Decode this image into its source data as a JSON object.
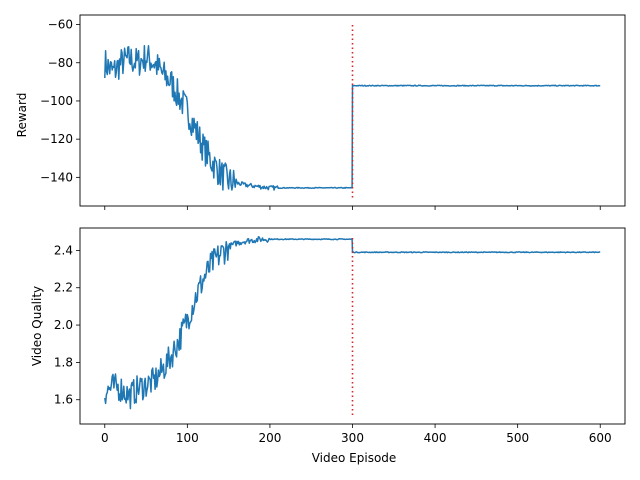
{
  "chart_data": [
    {
      "type": "line",
      "ylabel": "Reward",
      "xlabel": "",
      "xlim": [
        -30,
        630
      ],
      "ylim": [
        -155,
        -55
      ],
      "xticks": [
        0,
        100,
        200,
        300,
        400,
        500,
        600
      ],
      "yticks": [
        -140,
        -120,
        -100,
        -80,
        -60
      ],
      "ytick_labels": [
        "−140",
        "−120",
        "−100",
        "−80",
        "−60"
      ],
      "line_color": "#1f77b4",
      "vline": {
        "x": 300,
        "color": "#d62728",
        "style": "dotted"
      },
      "series": [
        {
          "x": [
            0,
            10,
            20,
            30,
            40,
            50,
            60,
            70,
            80,
            90,
            100,
            110,
            120,
            130,
            140,
            150,
            160,
            170,
            180,
            190,
            200,
            250,
            299,
            300,
            350,
            400,
            450,
            500,
            550,
            600
          ],
          "values": [
            -80,
            -85,
            -80,
            -78,
            -80,
            -77,
            -80,
            -86,
            -90,
            -98,
            -105,
            -115,
            -125,
            -132,
            -138,
            -142,
            -143,
            -144,
            -144.5,
            -145,
            -145.5,
            -145.5,
            -145.5,
            -92,
            -92,
            -92,
            -92,
            -92,
            -92,
            -92
          ]
        }
      ]
    },
    {
      "type": "line",
      "xlabel": "Video Episode",
      "ylabel": "Video Quality",
      "xlim": [
        -30,
        630
      ],
      "ylim": [
        1.47,
        2.52
      ],
      "xticks": [
        0,
        100,
        200,
        300,
        400,
        500,
        600
      ],
      "yticks": [
        1.6,
        1.8,
        2.0,
        2.2,
        2.4
      ],
      "ytick_labels": [
        "1.6",
        "1.8",
        "2.0",
        "2.2",
        "2.4"
      ],
      "line_color": "#1f77b4",
      "vline": {
        "x": 300,
        "color": "#d62728",
        "style": "dotted"
      },
      "series": [
        {
          "x": [
            0,
            10,
            20,
            30,
            40,
            50,
            60,
            70,
            80,
            90,
            100,
            110,
            120,
            130,
            140,
            150,
            160,
            170,
            180,
            190,
            200,
            250,
            299,
            300,
            350,
            400,
            450,
            500,
            550,
            600
          ],
          "values": [
            1.64,
            1.67,
            1.66,
            1.62,
            1.66,
            1.68,
            1.7,
            1.76,
            1.83,
            1.92,
            2.03,
            2.15,
            2.25,
            2.33,
            2.38,
            2.42,
            2.44,
            2.45,
            2.455,
            2.46,
            2.46,
            2.46,
            2.46,
            2.39,
            2.39,
            2.39,
            2.39,
            2.39,
            2.39,
            2.39
          ]
        }
      ]
    }
  ]
}
